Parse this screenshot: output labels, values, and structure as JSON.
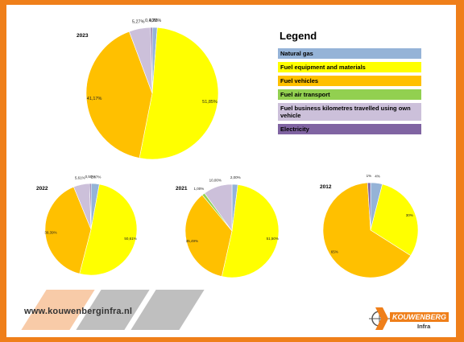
{
  "legend": {
    "title": "Legend",
    "items": [
      {
        "label": "Natural gas",
        "color": "#95b3d7"
      },
      {
        "label": "Fuel equipment and materials",
        "color": "#ffff00"
      },
      {
        "label": "Fuel vehicles",
        "color": "#ffc000"
      },
      {
        "label": "Fuel air transport",
        "color": "#92d050"
      },
      {
        "label": "Fuel business kilometres travelled using own vehicle",
        "color": "#ccc0da"
      },
      {
        "label": "Electricity",
        "color": "#8064a2"
      }
    ]
  },
  "chart_data": [
    {
      "type": "pie",
      "title": "2023",
      "categories": [
        "Natural gas",
        "Fuel equipment and materials",
        "Fuel vehicles",
        "Fuel air transport",
        "Fuel business kilometres travelled using own vehicle",
        "Electricity"
      ],
      "values": [
        1.22,
        51.85,
        41.17,
        0.0,
        5.27,
        0.4
      ],
      "labels": [
        "1,22%",
        "51,85%",
        "41,17%",
        "",
        "5,27%",
        "0,40%"
      ]
    },
    {
      "type": "pie",
      "title": "2022",
      "categories": [
        "Natural gas",
        "Fuel equipment and materials",
        "Fuel vehicles",
        "Fuel air transport",
        "Fuel business kilometres travelled using own vehicle",
        "Electricity"
      ],
      "values": [
        2.87,
        50.61,
        39.39,
        0.0,
        5.61,
        0.5
      ],
      "labels": [
        "2,87%",
        "50,61%",
        "39,39%",
        "",
        "5,61%",
        "0,50%"
      ]
    },
    {
      "type": "pie",
      "title": "2021",
      "categories": [
        "Natural gas",
        "Fuel equipment and materials",
        "Fuel vehicles",
        "Fuel air transport",
        "Fuel business kilometres travelled using own vehicle",
        "Electricity"
      ],
      "values": [
        2.0,
        51.5,
        35.49,
        1.0,
        10.0,
        0.0
      ],
      "labels": [
        "2,00%",
        "51,50%",
        "35,49%",
        "1,00%",
        "10,00%",
        ""
      ]
    },
    {
      "type": "pie",
      "title": "2012",
      "categories": [
        "Natural gas",
        "Fuel equipment and materials",
        "Fuel vehicles",
        "Fuel air transport",
        "Fuel business kilometres travelled using own vehicle",
        "Electricity"
      ],
      "values": [
        4,
        30,
        65,
        0,
        0,
        1
      ],
      "labels": [
        "4%",
        "30%",
        "65%",
        "",
        "",
        "1%"
      ]
    }
  ],
  "footer": {
    "website": "www.kouwenberginfra.nl",
    "logo_name": "KOUWENBERG",
    "logo_sub": "Infra",
    "stripe_colors": [
      "#f8cba8",
      "#bfbfbf",
      "#bfbfbf"
    ]
  }
}
